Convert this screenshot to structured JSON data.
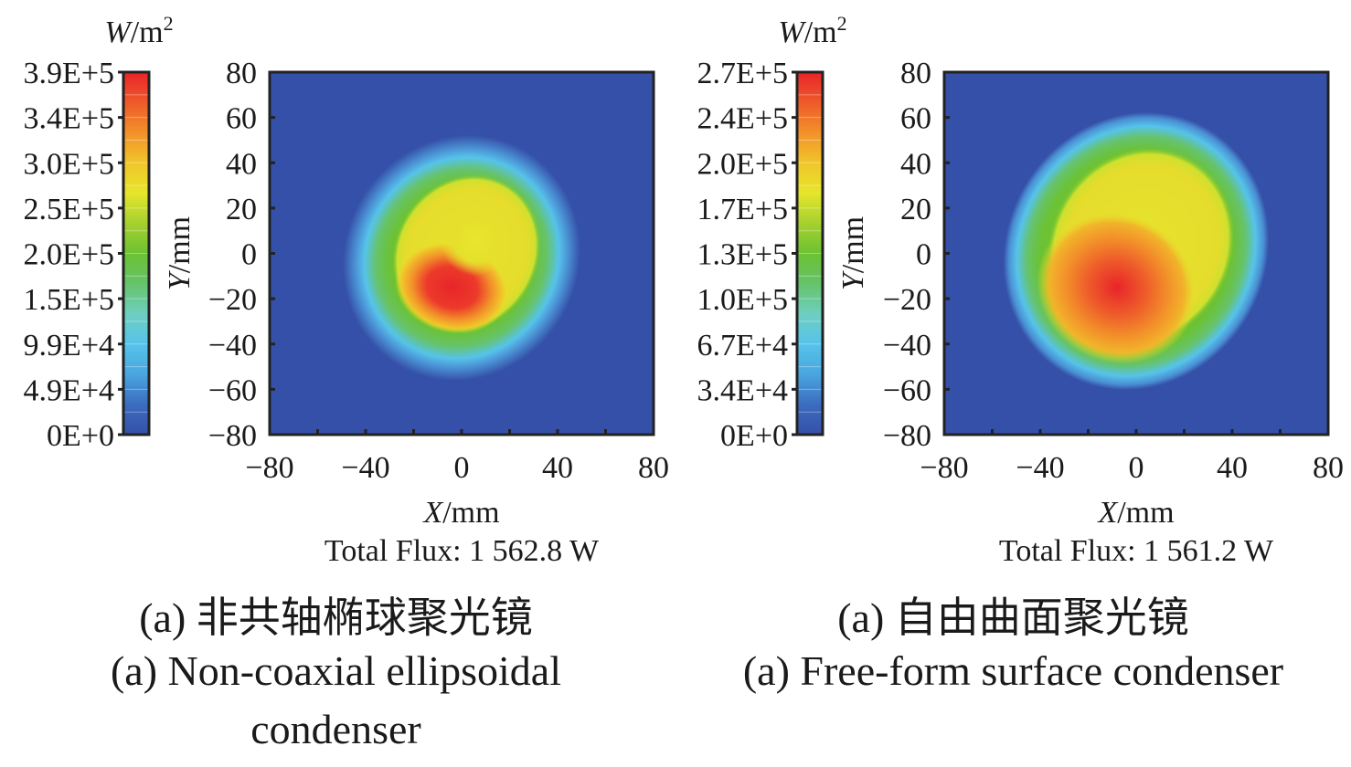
{
  "chart_data": [
    {
      "type": "heatmap",
      "title": "",
      "colorbar": {
        "unit_italic": "W",
        "unit_rest": "/m",
        "unit_sup": "2",
        "min": 0,
        "max": 390000,
        "tick_labels": [
          "3.9E+5",
          "3.4E+5",
          "3.0E+5",
          "2.5E+5",
          "2.0E+5",
          "1.5E+5",
          "9.9E+4",
          "4.9E+4",
          "0E+0"
        ]
      },
      "xlabel_italic": "X",
      "xlabel_rest": "/mm",
      "ylabel_italic": "Y",
      "ylabel_rest": "/mm",
      "xlim": [
        -80,
        80
      ],
      "ylim": [
        -80,
        80
      ],
      "x_ticks": [
        -80,
        -40,
        0,
        40,
        80
      ],
      "x_tick_labels": [
        "−80",
        "−40",
        "0",
        "40",
        "80"
      ],
      "y_ticks": [
        80,
        60,
        40,
        20,
        0,
        -20,
        -40,
        -60,
        -80
      ],
      "y_tick_labels": [
        "80",
        "60",
        "40",
        "20",
        "0",
        "−20",
        "−40",
        "−60",
        "−80"
      ],
      "spot": {
        "center_x_mm": 0,
        "center_y_mm": -2,
        "outer_radius_x_mm": 45,
        "outer_radius_y_mm": 51,
        "hot_region_center_mm": [
          -4,
          -15
        ],
        "tilt_deg": 30
      },
      "total_flux": "Total Flux: 1 562.8 W",
      "caption_cn": "(a) 非共轴椭球聚光镜",
      "caption_en_line1": "(a) Non-coaxial ellipsoidal",
      "caption_en_line2": "condenser"
    },
    {
      "type": "heatmap",
      "title": "",
      "colorbar": {
        "unit_italic": "W",
        "unit_rest": "/m",
        "unit_sup": "2",
        "min": 0,
        "max": 270000,
        "tick_labels": [
          "2.7E+5",
          "2.4E+5",
          "2.0E+5",
          "1.7E+5",
          "1.3E+5",
          "1.0E+5",
          "6.7E+4",
          "3.4E+4",
          "0E+0"
        ]
      },
      "xlabel_italic": "X",
      "xlabel_rest": "/mm",
      "ylabel_italic": "Y",
      "ylabel_rest": "/mm",
      "xlim": [
        -80,
        80
      ],
      "ylim": [
        -80,
        80
      ],
      "x_ticks": [
        -80,
        -40,
        0,
        40,
        80
      ],
      "x_tick_labels": [
        "−80",
        "−40",
        "0",
        "40",
        "80"
      ],
      "y_ticks": [
        80,
        60,
        40,
        20,
        0,
        -20,
        -40,
        -60,
        -80
      ],
      "y_tick_labels": [
        "80",
        "60",
        "40",
        "20",
        "0",
        "−20",
        "−40",
        "−60",
        "−80"
      ],
      "spot": {
        "center_x_mm": 0,
        "center_y_mm": 1,
        "outer_radius_x_mm": 50,
        "outer_radius_y_mm": 58,
        "hot_region_center_mm": [
          -8,
          -15
        ],
        "tilt_deg": 30
      },
      "total_flux": "Total Flux: 1 561.2 W",
      "caption_cn": "(a) 自由曲面聚光镜",
      "caption_en_line1": "(a) Free-form surface condenser",
      "caption_en_line2": ""
    }
  ],
  "colors": {
    "background_low": "#3550a8",
    "jet_stops": [
      "#3550a8",
      "#3b6cc0",
      "#4aa6df",
      "#56c3ea",
      "#6ecfc0",
      "#66c36a",
      "#6cc232",
      "#a6d12e",
      "#e6e52c",
      "#f1c52a",
      "#f2912a",
      "#ee5a2a",
      "#e8242a"
    ]
  }
}
